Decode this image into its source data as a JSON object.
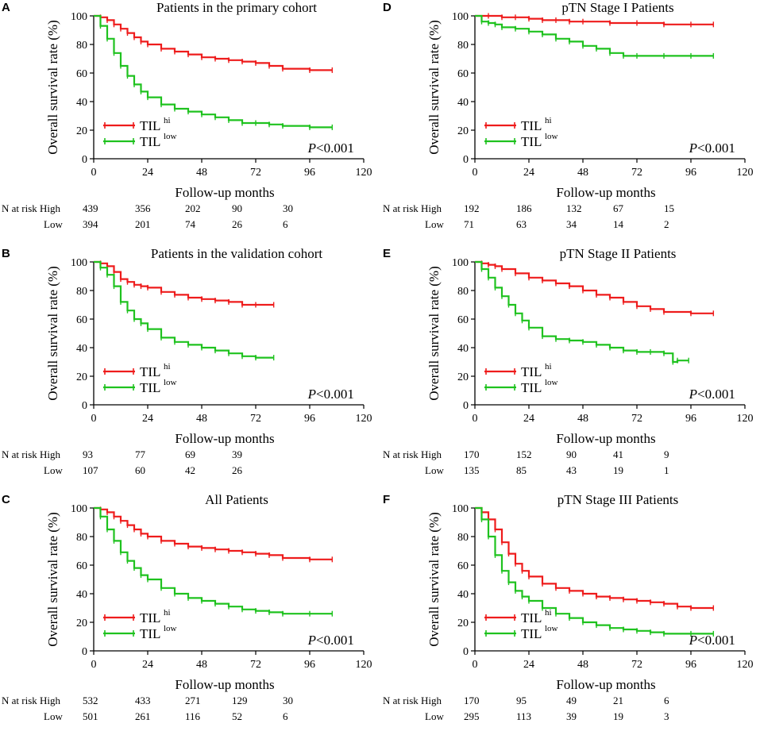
{
  "figure": {
    "colors": {
      "high": "#ee1c1c",
      "low": "#1fc21f",
      "axis": "#000000"
    },
    "risk_label_high": "N at risk High",
    "risk_label_low": "Low"
  },
  "chart_data": [
    {
      "letter": "A",
      "type": "line",
      "title": "Patients in the primary cohort",
      "xlabel": "Follow-up months",
      "ylabel": "Overall survival rate (%)",
      "xlim": [
        0,
        120
      ],
      "ylim": [
        0,
        100
      ],
      "xticks": [
        0,
        24,
        48,
        72,
        96,
        120
      ],
      "yticks": [
        0,
        20,
        40,
        60,
        80,
        100
      ],
      "legend": [
        {
          "base": "TIL",
          "sup": "hi"
        },
        {
          "base": "TIL",
          "sup": "low"
        }
      ],
      "p_label": "P",
      "p_value": "<0.001",
      "series": [
        {
          "name": "TIL hi",
          "color": "#ee1c1c",
          "x": [
            0,
            3,
            6,
            9,
            12,
            15,
            18,
            21,
            24,
            30,
            36,
            42,
            48,
            54,
            60,
            66,
            72,
            78,
            84,
            96,
            106
          ],
          "y": [
            100,
            99,
            97,
            94,
            91,
            88,
            85,
            82,
            80,
            77,
            75,
            73,
            71,
            70,
            69,
            68,
            67,
            65,
            63,
            62,
            62
          ]
        },
        {
          "name": "TIL low",
          "color": "#1fc21f",
          "x": [
            0,
            3,
            6,
            9,
            12,
            15,
            18,
            21,
            24,
            30,
            36,
            42,
            48,
            54,
            60,
            66,
            72,
            78,
            84,
            96,
            106
          ],
          "y": [
            100,
            93,
            84,
            74,
            65,
            58,
            52,
            47,
            43,
            38,
            35,
            33,
            31,
            29,
            27,
            25,
            25,
            24,
            23,
            22,
            22
          ]
        }
      ],
      "risk_table": {
        "high": [
          "439",
          "356",
          "202",
          "90",
          "30"
        ],
        "low": [
          "394",
          "201",
          "74",
          "26",
          "6"
        ]
      }
    },
    {
      "letter": "B",
      "type": "line",
      "title": "Patients in the validation cohort",
      "xlabel": "Follow-up months",
      "ylabel": "Overall survival rate (%)",
      "xlim": [
        0,
        120
      ],
      "ylim": [
        0,
        100
      ],
      "xticks": [
        0,
        24,
        48,
        72,
        96,
        120
      ],
      "yticks": [
        0,
        20,
        40,
        60,
        80,
        100
      ],
      "legend": [
        {
          "base": "TIL",
          "sup": "hi"
        },
        {
          "base": "TIL",
          "sup": "low"
        }
      ],
      "p_label": "P",
      "p_value": "<0.001",
      "series": [
        {
          "name": "TIL hi",
          "color": "#ee1c1c",
          "x": [
            0,
            3,
            6,
            9,
            12,
            15,
            18,
            21,
            24,
            30,
            36,
            42,
            48,
            54,
            60,
            66,
            72,
            80
          ],
          "y": [
            100,
            99,
            97,
            93,
            88,
            86,
            84,
            83,
            82,
            79,
            77,
            75,
            74,
            73,
            72,
            70,
            70,
            70
          ]
        },
        {
          "name": "TIL low",
          "color": "#1fc21f",
          "x": [
            0,
            3,
            6,
            9,
            12,
            15,
            18,
            21,
            24,
            30,
            36,
            42,
            48,
            54,
            60,
            66,
            72,
            80
          ],
          "y": [
            100,
            96,
            91,
            83,
            72,
            66,
            60,
            57,
            53,
            47,
            44,
            42,
            40,
            38,
            36,
            34,
            33,
            33
          ]
        }
      ],
      "risk_table": {
        "high": [
          "93",
          "77",
          "69",
          "39"
        ],
        "low": [
          "107",
          "60",
          "42",
          "26"
        ]
      }
    },
    {
      "letter": "C",
      "type": "line",
      "title": "All Patients",
      "xlabel": "Follow-up months",
      "ylabel": "Overall survival rate (%)",
      "xlim": [
        0,
        120
      ],
      "ylim": [
        0,
        100
      ],
      "xticks": [
        0,
        24,
        48,
        72,
        96,
        120
      ],
      "yticks": [
        0,
        20,
        40,
        60,
        80,
        100
      ],
      "legend": [
        {
          "base": "TIL",
          "sup": "hi"
        },
        {
          "base": "TIL",
          "sup": "low"
        }
      ],
      "p_label": "P",
      "p_value": "<0.001",
      "series": [
        {
          "name": "TIL hi",
          "color": "#ee1c1c",
          "x": [
            0,
            3,
            6,
            9,
            12,
            15,
            18,
            21,
            24,
            30,
            36,
            42,
            48,
            54,
            60,
            66,
            72,
            78,
            84,
            96,
            106
          ],
          "y": [
            100,
            99,
            97,
            94,
            91,
            88,
            85,
            82,
            80,
            77,
            75,
            73,
            72,
            71,
            70,
            69,
            68,
            67,
            65,
            64,
            64
          ]
        },
        {
          "name": "TIL low",
          "color": "#1fc21f",
          "x": [
            0,
            3,
            6,
            9,
            12,
            15,
            18,
            21,
            24,
            30,
            36,
            42,
            48,
            54,
            60,
            66,
            72,
            78,
            84,
            96,
            106
          ],
          "y": [
            100,
            94,
            85,
            77,
            69,
            63,
            58,
            53,
            50,
            44,
            40,
            37,
            35,
            33,
            31,
            29,
            28,
            27,
            26,
            26,
            26
          ]
        }
      ],
      "risk_table": {
        "high": [
          "532",
          "433",
          "271",
          "129",
          "30"
        ],
        "low": [
          "501",
          "261",
          "116",
          "52",
          "6"
        ]
      }
    },
    {
      "letter": "D",
      "type": "line",
      "title": "pTN Stage I Patients",
      "xlabel": "Follow-up months",
      "ylabel": "Overall survival rate (%)",
      "xlim": [
        0,
        120
      ],
      "ylim": [
        0,
        100
      ],
      "xticks": [
        0,
        24,
        48,
        72,
        96,
        120
      ],
      "yticks": [
        0,
        20,
        40,
        60,
        80,
        100
      ],
      "legend": [
        {
          "base": "TIL",
          "sup": "hi"
        },
        {
          "base": "TIL",
          "sup": "low"
        }
      ],
      "p_label": "P",
      "p_value": "<0.001",
      "series": [
        {
          "name": "TIL hi",
          "color": "#ee1c1c",
          "x": [
            0,
            6,
            12,
            18,
            24,
            30,
            36,
            42,
            48,
            60,
            72,
            84,
            96,
            106
          ],
          "y": [
            100,
            100,
            99,
            99,
            98,
            97,
            97,
            96,
            96,
            95,
            95,
            94,
            94,
            94
          ]
        },
        {
          "name": "TIL low",
          "color": "#1fc21f",
          "x": [
            0,
            3,
            6,
            9,
            12,
            18,
            24,
            30,
            36,
            42,
            48,
            54,
            60,
            66,
            72,
            84,
            96,
            106
          ],
          "y": [
            100,
            96,
            95,
            94,
            92,
            91,
            89,
            87,
            84,
            82,
            79,
            77,
            74,
            72,
            72,
            72,
            72,
            72
          ]
        }
      ],
      "risk_table": {
        "high": [
          "192",
          "186",
          "132",
          "67",
          "15"
        ],
        "low": [
          "71",
          "63",
          "34",
          "14",
          "2"
        ]
      }
    },
    {
      "letter": "E",
      "type": "line",
      "title": "pTN Stage II Patients",
      "xlabel": "Follow-up months",
      "ylabel": "Overall survival rate (%)",
      "xlim": [
        0,
        120
      ],
      "ylim": [
        0,
        100
      ],
      "xticks": [
        0,
        24,
        48,
        72,
        96,
        120
      ],
      "yticks": [
        0,
        20,
        40,
        60,
        80,
        100
      ],
      "legend": [
        {
          "base": "TIL",
          "sup": "hi"
        },
        {
          "base": "TIL",
          "sup": "low"
        }
      ],
      "p_label": "P",
      "p_value": "<0.001",
      "series": [
        {
          "name": "TIL hi",
          "color": "#ee1c1c",
          "x": [
            0,
            3,
            6,
            9,
            12,
            18,
            24,
            30,
            36,
            42,
            48,
            54,
            60,
            66,
            72,
            78,
            84,
            96,
            106
          ],
          "y": [
            100,
            99,
            98,
            97,
            95,
            92,
            89,
            87,
            85,
            83,
            80,
            77,
            75,
            72,
            69,
            67,
            65,
            64,
            64
          ]
        },
        {
          "name": "TIL low",
          "color": "#1fc21f",
          "x": [
            0,
            3,
            6,
            9,
            12,
            15,
            18,
            21,
            24,
            30,
            36,
            42,
            48,
            54,
            60,
            66,
            72,
            78,
            84,
            88,
            90,
            95
          ],
          "y": [
            100,
            95,
            89,
            82,
            76,
            70,
            64,
            59,
            54,
            48,
            46,
            45,
            44,
            42,
            40,
            38,
            37,
            37,
            36,
            30,
            31,
            31
          ]
        }
      ],
      "risk_table": {
        "high": [
          "170",
          "152",
          "90",
          "41",
          "9"
        ],
        "low": [
          "135",
          "85",
          "43",
          "19",
          "1"
        ]
      }
    },
    {
      "letter": "F",
      "type": "line",
      "title": "pTN Stage III Patients",
      "xlabel": "Follow-up months",
      "ylabel": "Overall survival rate (%)",
      "xlim": [
        0,
        120
      ],
      "ylim": [
        0,
        100
      ],
      "xticks": [
        0,
        24,
        48,
        72,
        96,
        120
      ],
      "yticks": [
        0,
        20,
        40,
        60,
        80,
        100
      ],
      "legend": [
        {
          "base": "TIL",
          "sup": "hi"
        },
        {
          "base": "TIL",
          "sup": "low"
        }
      ],
      "p_label": "P",
      "p_value": "<0.001",
      "series": [
        {
          "name": "TIL hi",
          "color": "#ee1c1c",
          "x": [
            0,
            3,
            6,
            9,
            12,
            15,
            18,
            21,
            24,
            30,
            36,
            42,
            48,
            54,
            60,
            66,
            72,
            78,
            84,
            90,
            96,
            106
          ],
          "y": [
            100,
            97,
            92,
            85,
            76,
            68,
            61,
            56,
            52,
            47,
            44,
            42,
            40,
            38,
            37,
            36,
            35,
            34,
            33,
            31,
            30,
            30
          ]
        },
        {
          "name": "TIL low",
          "color": "#1fc21f",
          "x": [
            0,
            3,
            6,
            9,
            12,
            15,
            18,
            21,
            24,
            30,
            36,
            42,
            48,
            54,
            60,
            66,
            72,
            78,
            84,
            96,
            106
          ],
          "y": [
            100,
            92,
            80,
            67,
            56,
            48,
            42,
            38,
            35,
            30,
            26,
            23,
            20,
            18,
            16,
            15,
            14,
            13,
            12,
            12,
            12
          ]
        }
      ],
      "risk_table": {
        "high": [
          "170",
          "95",
          "49",
          "21",
          "6"
        ],
        "low": [
          "295",
          "113",
          "39",
          "19",
          "3"
        ]
      }
    }
  ]
}
